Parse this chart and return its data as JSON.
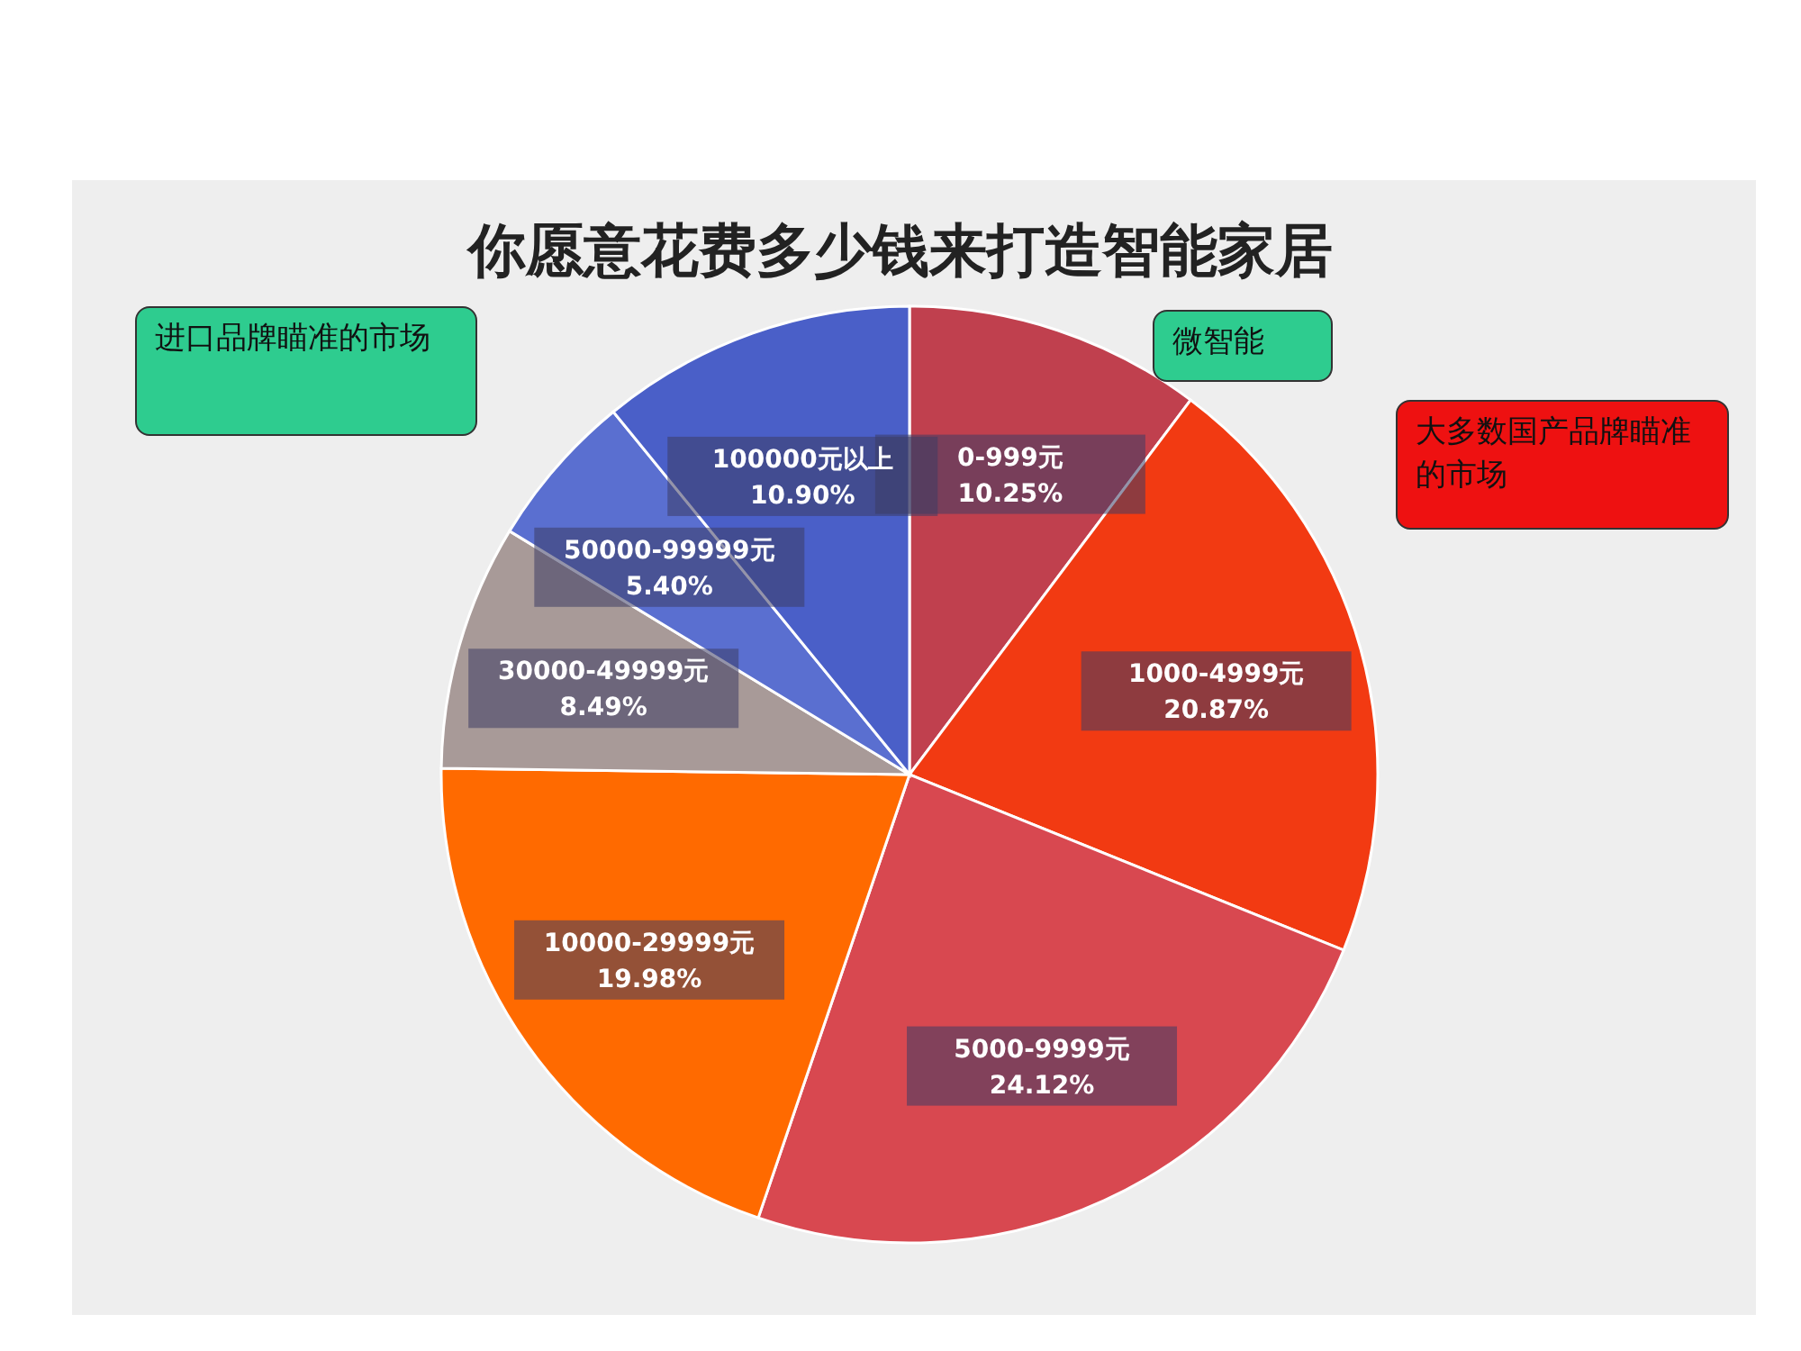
{
  "chart_data": {
    "type": "pie",
    "title": "你愿意花费多少钱来打造智能家居",
    "categories": [
      "0-999元",
      "1000-4999元",
      "5000-9999元",
      "10000-29999元",
      "30000-49999元",
      "50000-99999元",
      "100000元以上"
    ],
    "values": [
      10.25,
      20.87,
      24.12,
      19.98,
      8.49,
      5.4,
      10.9
    ],
    "value_labels": [
      "10.25%",
      "20.87%",
      "24.12%",
      "19.98%",
      "8.49%",
      "5.40%",
      "10.90%"
    ],
    "colors": [
      "#c0404e",
      "#f23a12",
      "#d84850",
      "#ff6a00",
      "#a89a98",
      "#5a6fd0",
      "#4a5fc8"
    ],
    "annotations": [
      "微智能",
      "进口品牌瞄准的市场",
      "大多数国产品牌瞄准的市场"
    ]
  }
}
